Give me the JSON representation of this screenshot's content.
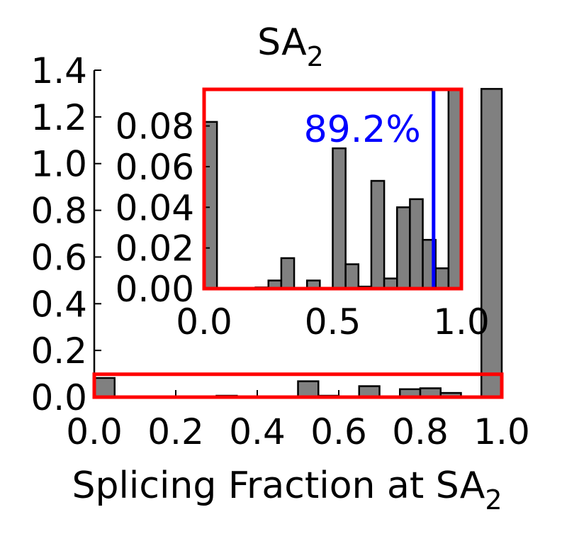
{
  "chart_data": {
    "type": "bar",
    "title": {
      "base": "SA",
      "sub": "2"
    },
    "xlabel": {
      "base": "Splicing Fraction at SA",
      "sub": "2"
    },
    "ylabel": "",
    "xlim": [
      0.0,
      1.0
    ],
    "ylim": [
      0.0,
      1.4
    ],
    "xticks": [
      "0.0",
      "0.2",
      "0.4",
      "0.6",
      "0.8",
      "1.0"
    ],
    "yticks": [
      "0.0",
      "0.2",
      "0.4",
      "0.6",
      "0.8",
      "1.0",
      "1.2",
      "1.4"
    ],
    "bin_width": 0.05,
    "bins": [
      {
        "x0": 0.0,
        "value": 0.082
      },
      {
        "x0": 0.3,
        "value": 0.006
      },
      {
        "x0": 0.5,
        "value": 0.068
      },
      {
        "x0": 0.55,
        "value": 0.006
      },
      {
        "x0": 0.65,
        "value": 0.047
      },
      {
        "x0": 0.75,
        "value": 0.034
      },
      {
        "x0": 0.8,
        "value": 0.038
      },
      {
        "x0": 0.85,
        "value": 0.018
      },
      {
        "x0": 0.95,
        "value": 1.32
      }
    ],
    "zoom_region": {
      "x": [
        0.0,
        1.0
      ],
      "y": [
        0.0,
        0.098
      ]
    },
    "inset": {
      "xlim": [
        0.0,
        1.0
      ],
      "ylim": [
        0.0,
        0.098
      ],
      "xticks": [
        "0.0",
        "0.5",
        "1.0"
      ],
      "yticks": [
        "0.00",
        "0.02",
        "0.04",
        "0.06",
        "0.08"
      ],
      "bin_width": 0.05,
      "bins": [
        {
          "x0": 0.0,
          "value": 0.082
        },
        {
          "x0": 0.2,
          "value": 0.0006
        },
        {
          "x0": 0.25,
          "value": 0.004
        },
        {
          "x0": 0.3,
          "value": 0.015
        },
        {
          "x0": 0.4,
          "value": 0.004
        },
        {
          "x0": 0.5,
          "value": 0.069
        },
        {
          "x0": 0.55,
          "value": 0.012
        },
        {
          "x0": 0.6,
          "value": 0.001
        },
        {
          "x0": 0.65,
          "value": 0.053
        },
        {
          "x0": 0.7,
          "value": 0.005
        },
        {
          "x0": 0.75,
          "value": 0.04
        },
        {
          "x0": 0.8,
          "value": 0.044
        },
        {
          "x0": 0.85,
          "value": 0.024
        },
        {
          "x0": 0.9,
          "value": 0.01
        },
        {
          "x0": 0.95,
          "value": 0.098
        }
      ],
      "marker_x": 0.892,
      "marker_label": "89.2%"
    }
  },
  "colors": {
    "bar_fill": "#808080",
    "zoom_box": "#ff0000",
    "marker": "#0000ff",
    "axis": "#000000"
  }
}
